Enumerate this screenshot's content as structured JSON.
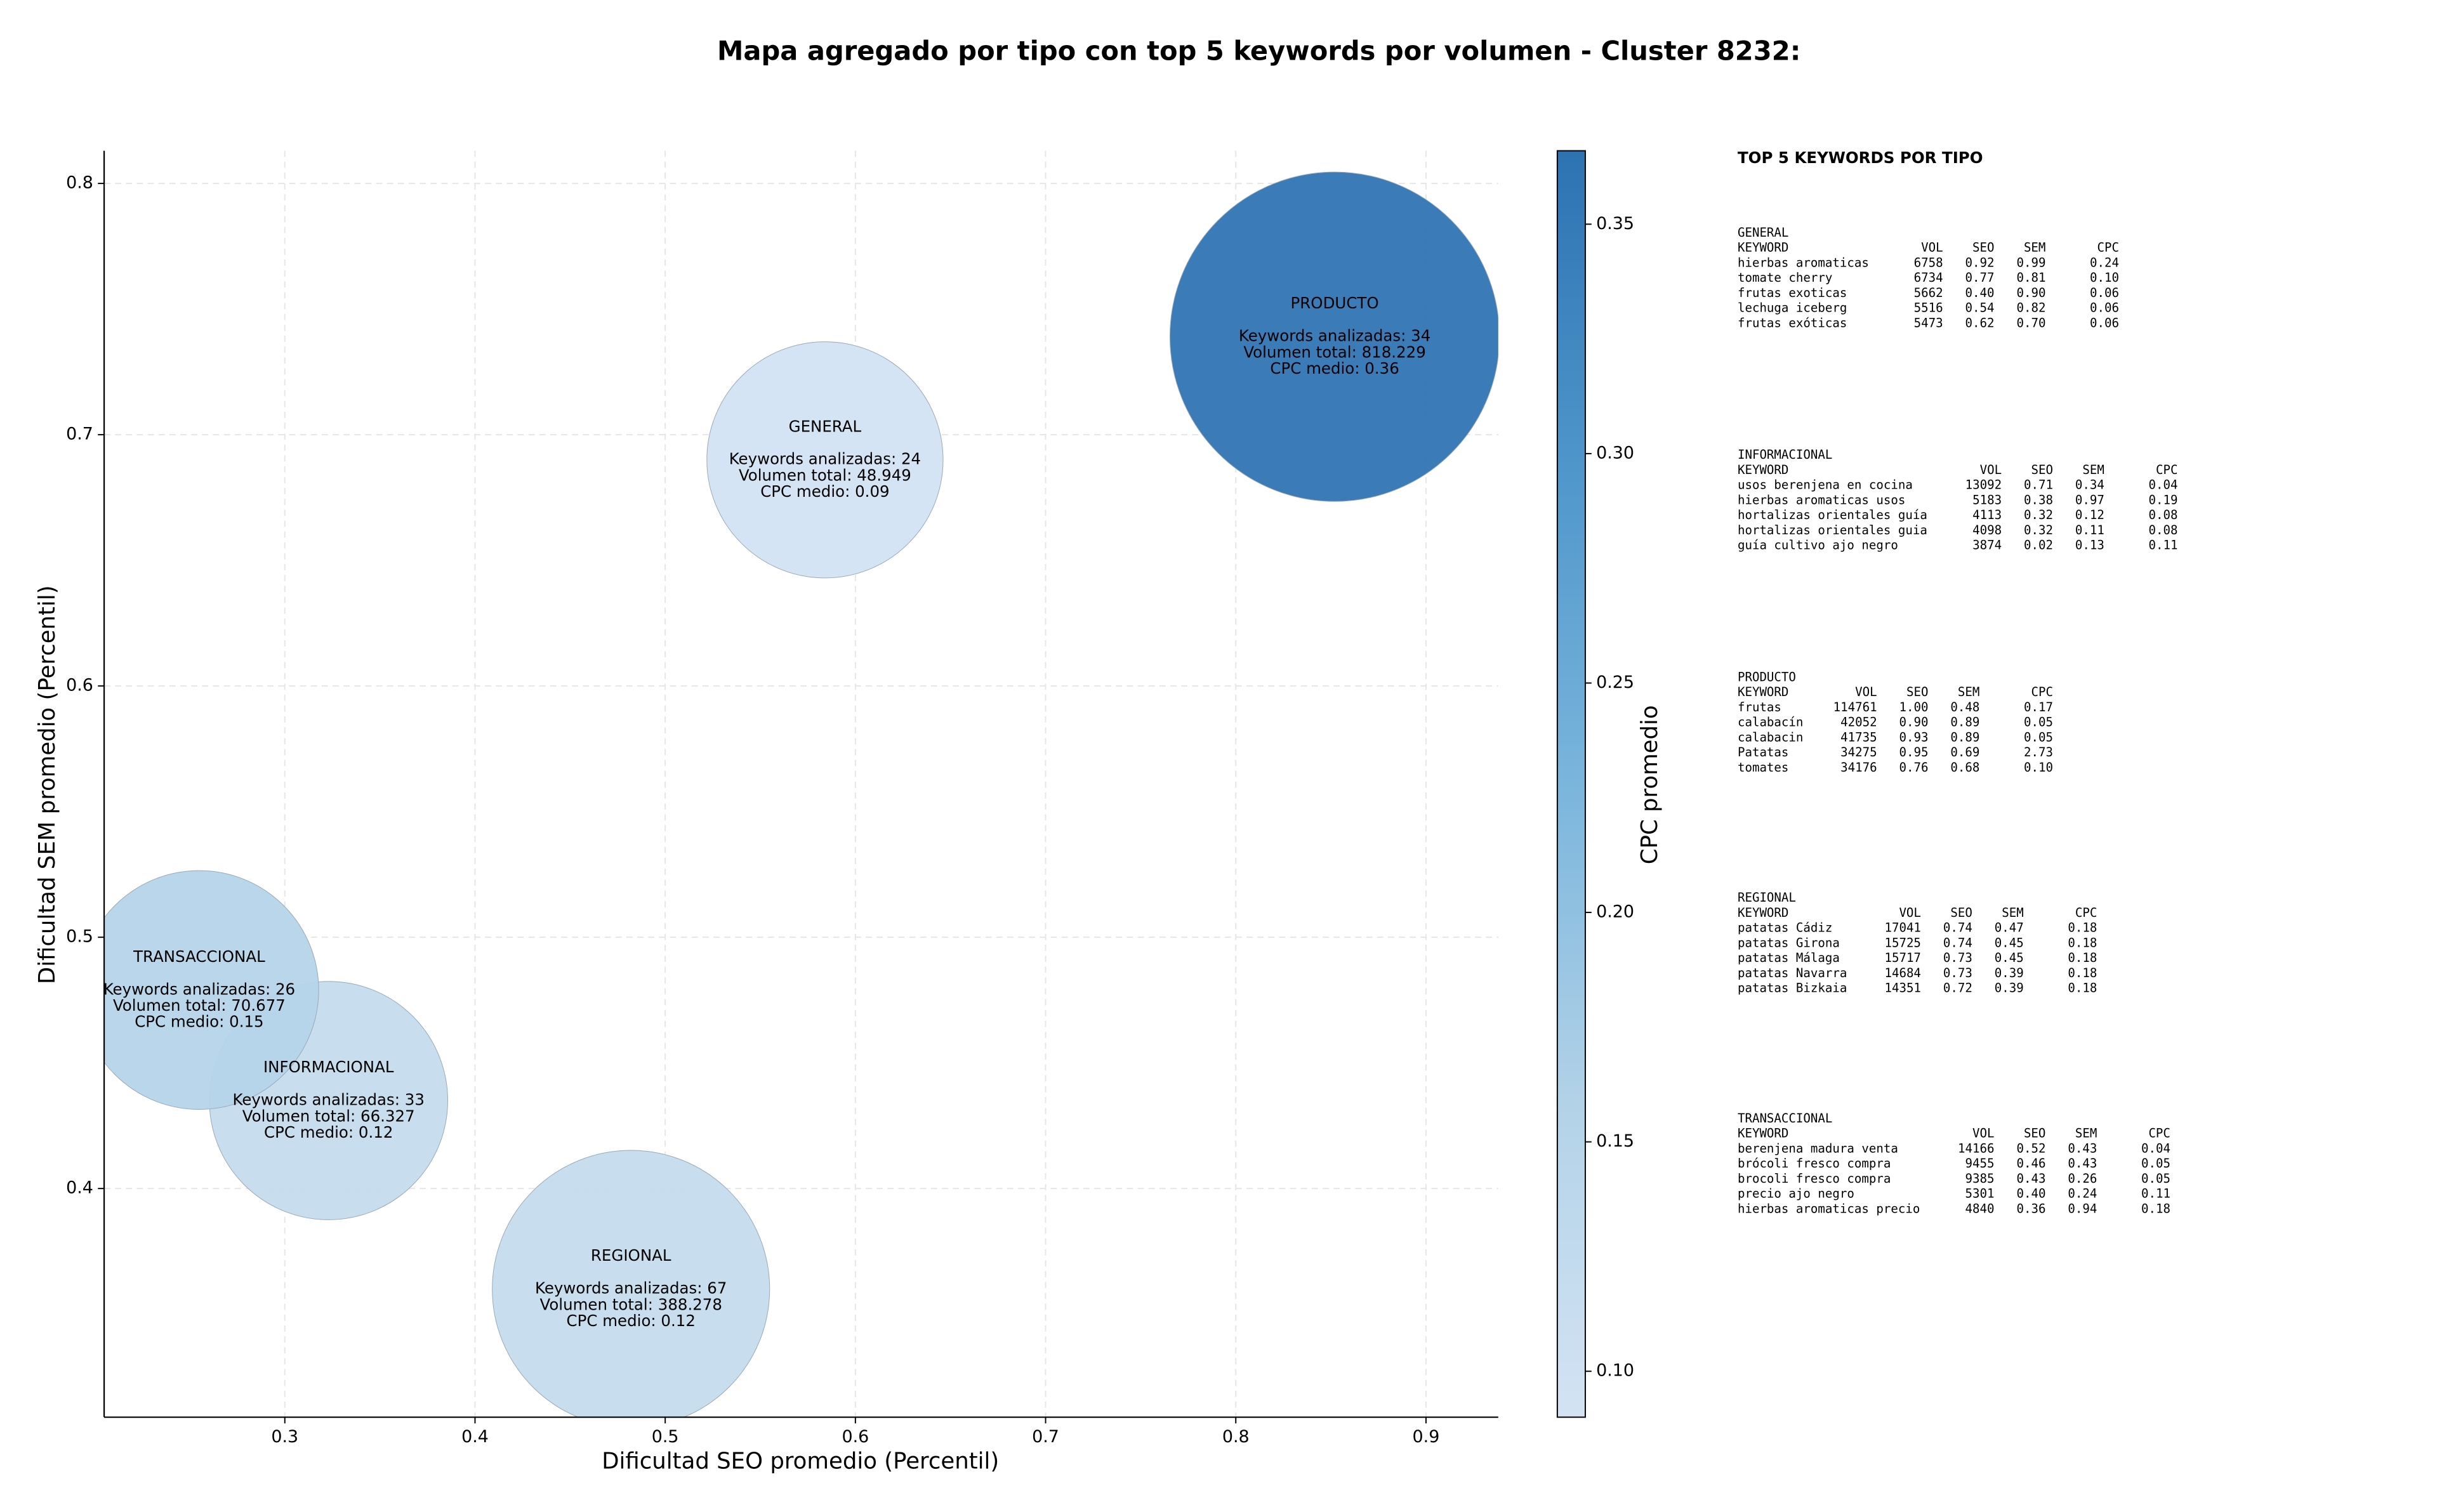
{
  "chart_data": {
    "type": "bubble",
    "title": "Mapa agregado por tipo con top 5 keywords por volumen - Cluster 8232:",
    "xlabel": "Dificultad SEO promedio (Percentil)",
    "ylabel": "Dificultad SEM promedio (Percentil)",
    "xlim": [
      0.205,
      0.938
    ],
    "ylim": [
      0.309,
      0.813
    ],
    "xticks": [
      0.3,
      0.4,
      0.5,
      0.6,
      0.7,
      0.8,
      0.9
    ],
    "yticks": [
      0.4,
      0.5,
      0.6,
      0.7,
      0.8
    ],
    "grid": true,
    "colorbar": {
      "label": "CPC promedio",
      "clim": [
        0.09,
        0.366
      ],
      "ticks": [
        {
          "value": 0.1,
          "label": "0.10"
        },
        {
          "value": 0.15,
          "label": "0.15"
        },
        {
          "value": 0.2,
          "label": "0.20"
        },
        {
          "value": 0.25,
          "label": "0.25"
        },
        {
          "value": 0.3,
          "label": "0.30"
        },
        {
          "value": 0.35,
          "label": "0.35"
        }
      ],
      "colors": [
        "#d3e3f3",
        "#b2d2e8",
        "#7ab5dc",
        "#4f96cb",
        "#2d72b2"
      ]
    },
    "series": [
      {
        "labels": [
          "GENERAL",
          "INFORMACIONAL",
          "PRODUCTO",
          "REGIONAL",
          "TRANSACCIONAL"
        ],
        "x": [
          0.584,
          0.323,
          0.852,
          0.482,
          0.255
        ],
        "values": [
          0.69,
          0.435,
          0.739,
          0.36,
          0.479
        ],
        "sizes": [
          48949,
          66327,
          818229,
          388278,
          70677
        ],
        "cpc": [
          0.09,
          0.12,
          0.36,
          0.12,
          0.15
        ],
        "annotations": [
          [
            "Keywords analizadas: 24",
            "Volumen total: 48.949",
            "CPC medio: 0.09"
          ],
          [
            "Keywords analizadas: 33",
            "Volumen total: 66.327",
            "CPC medio: 0.12"
          ],
          [
            "Keywords analizadas: 34",
            "Volumen total: 818.229",
            "CPC medio: 0.36"
          ],
          [
            "Keywords analizadas: 67",
            "Volumen total: 388.278",
            "CPC medio: 0.12"
          ],
          [
            "Keywords analizadas: 26",
            "Volumen total: 70.677",
            "CPC medio: 0.15"
          ]
        ]
      }
    ]
  },
  "panel": {
    "title": "TOP 5 KEYWORDS POR TIPO",
    "columns": [
      "KEYWORD",
      "VOL",
      "SEO",
      "SEM",
      "CPC"
    ],
    "tables": [
      {
        "name": "GENERAL",
        "rows": [
          [
            "hierbas aromaticas",
            "6758",
            "0.92",
            "0.99",
            "0.24"
          ],
          [
            "tomate cherry",
            "6734",
            "0.77",
            "0.81",
            "0.10"
          ],
          [
            "frutas exoticas",
            "5662",
            "0.40",
            "0.90",
            "0.06"
          ],
          [
            "lechuga iceberg",
            "5516",
            "0.54",
            "0.82",
            "0.06"
          ],
          [
            "frutas exóticas",
            "5473",
            "0.62",
            "0.70",
            "0.06"
          ]
        ]
      },
      {
        "name": "INFORMACIONAL",
        "rows": [
          [
            "usos berenjena en cocina",
            "13092",
            "0.71",
            "0.34",
            "0.04"
          ],
          [
            "hierbas aromaticas usos",
            "5183",
            "0.38",
            "0.97",
            "0.19"
          ],
          [
            "hortalizas orientales guía",
            "4113",
            "0.32",
            "0.12",
            "0.08"
          ],
          [
            "hortalizas orientales guia",
            "4098",
            "0.32",
            "0.11",
            "0.08"
          ],
          [
            "guía cultivo ajo negro",
            "3874",
            "0.02",
            "0.13",
            "0.11"
          ]
        ]
      },
      {
        "name": "PRODUCTO",
        "rows": [
          [
            "frutas",
            "114761",
            "1.00",
            "0.48",
            "0.17"
          ],
          [
            "calabacín",
            "42052",
            "0.90",
            "0.89",
            "0.05"
          ],
          [
            "calabacin",
            "41735",
            "0.93",
            "0.89",
            "0.05"
          ],
          [
            "Patatas",
            "34275",
            "0.95",
            "0.69",
            "2.73"
          ],
          [
            "tomates",
            "34176",
            "0.76",
            "0.68",
            "0.10"
          ]
        ]
      },
      {
        "name": "REGIONAL",
        "rows": [
          [
            "patatas Cádiz",
            "17041",
            "0.74",
            "0.47",
            "0.18"
          ],
          [
            "patatas Girona",
            "15725",
            "0.74",
            "0.45",
            "0.18"
          ],
          [
            "patatas Málaga",
            "15717",
            "0.73",
            "0.45",
            "0.18"
          ],
          [
            "patatas Navarra",
            "14684",
            "0.73",
            "0.39",
            "0.18"
          ],
          [
            "patatas Bizkaia",
            "14351",
            "0.72",
            "0.39",
            "0.18"
          ]
        ]
      },
      {
        "name": "TRANSACCIONAL",
        "rows": [
          [
            "berenjena madura venta",
            "14166",
            "0.52",
            "0.43",
            "0.04"
          ],
          [
            "brócoli fresco compra",
            "9455",
            "0.46",
            "0.43",
            "0.05"
          ],
          [
            "brocoli fresco compra",
            "9385",
            "0.43",
            "0.26",
            "0.05"
          ],
          [
            "precio ajo negro",
            "5301",
            "0.40",
            "0.24",
            "0.11"
          ],
          [
            "hierbas aromaticas precio",
            "4840",
            "0.36",
            "0.94",
            "0.18"
          ]
        ]
      }
    ]
  }
}
